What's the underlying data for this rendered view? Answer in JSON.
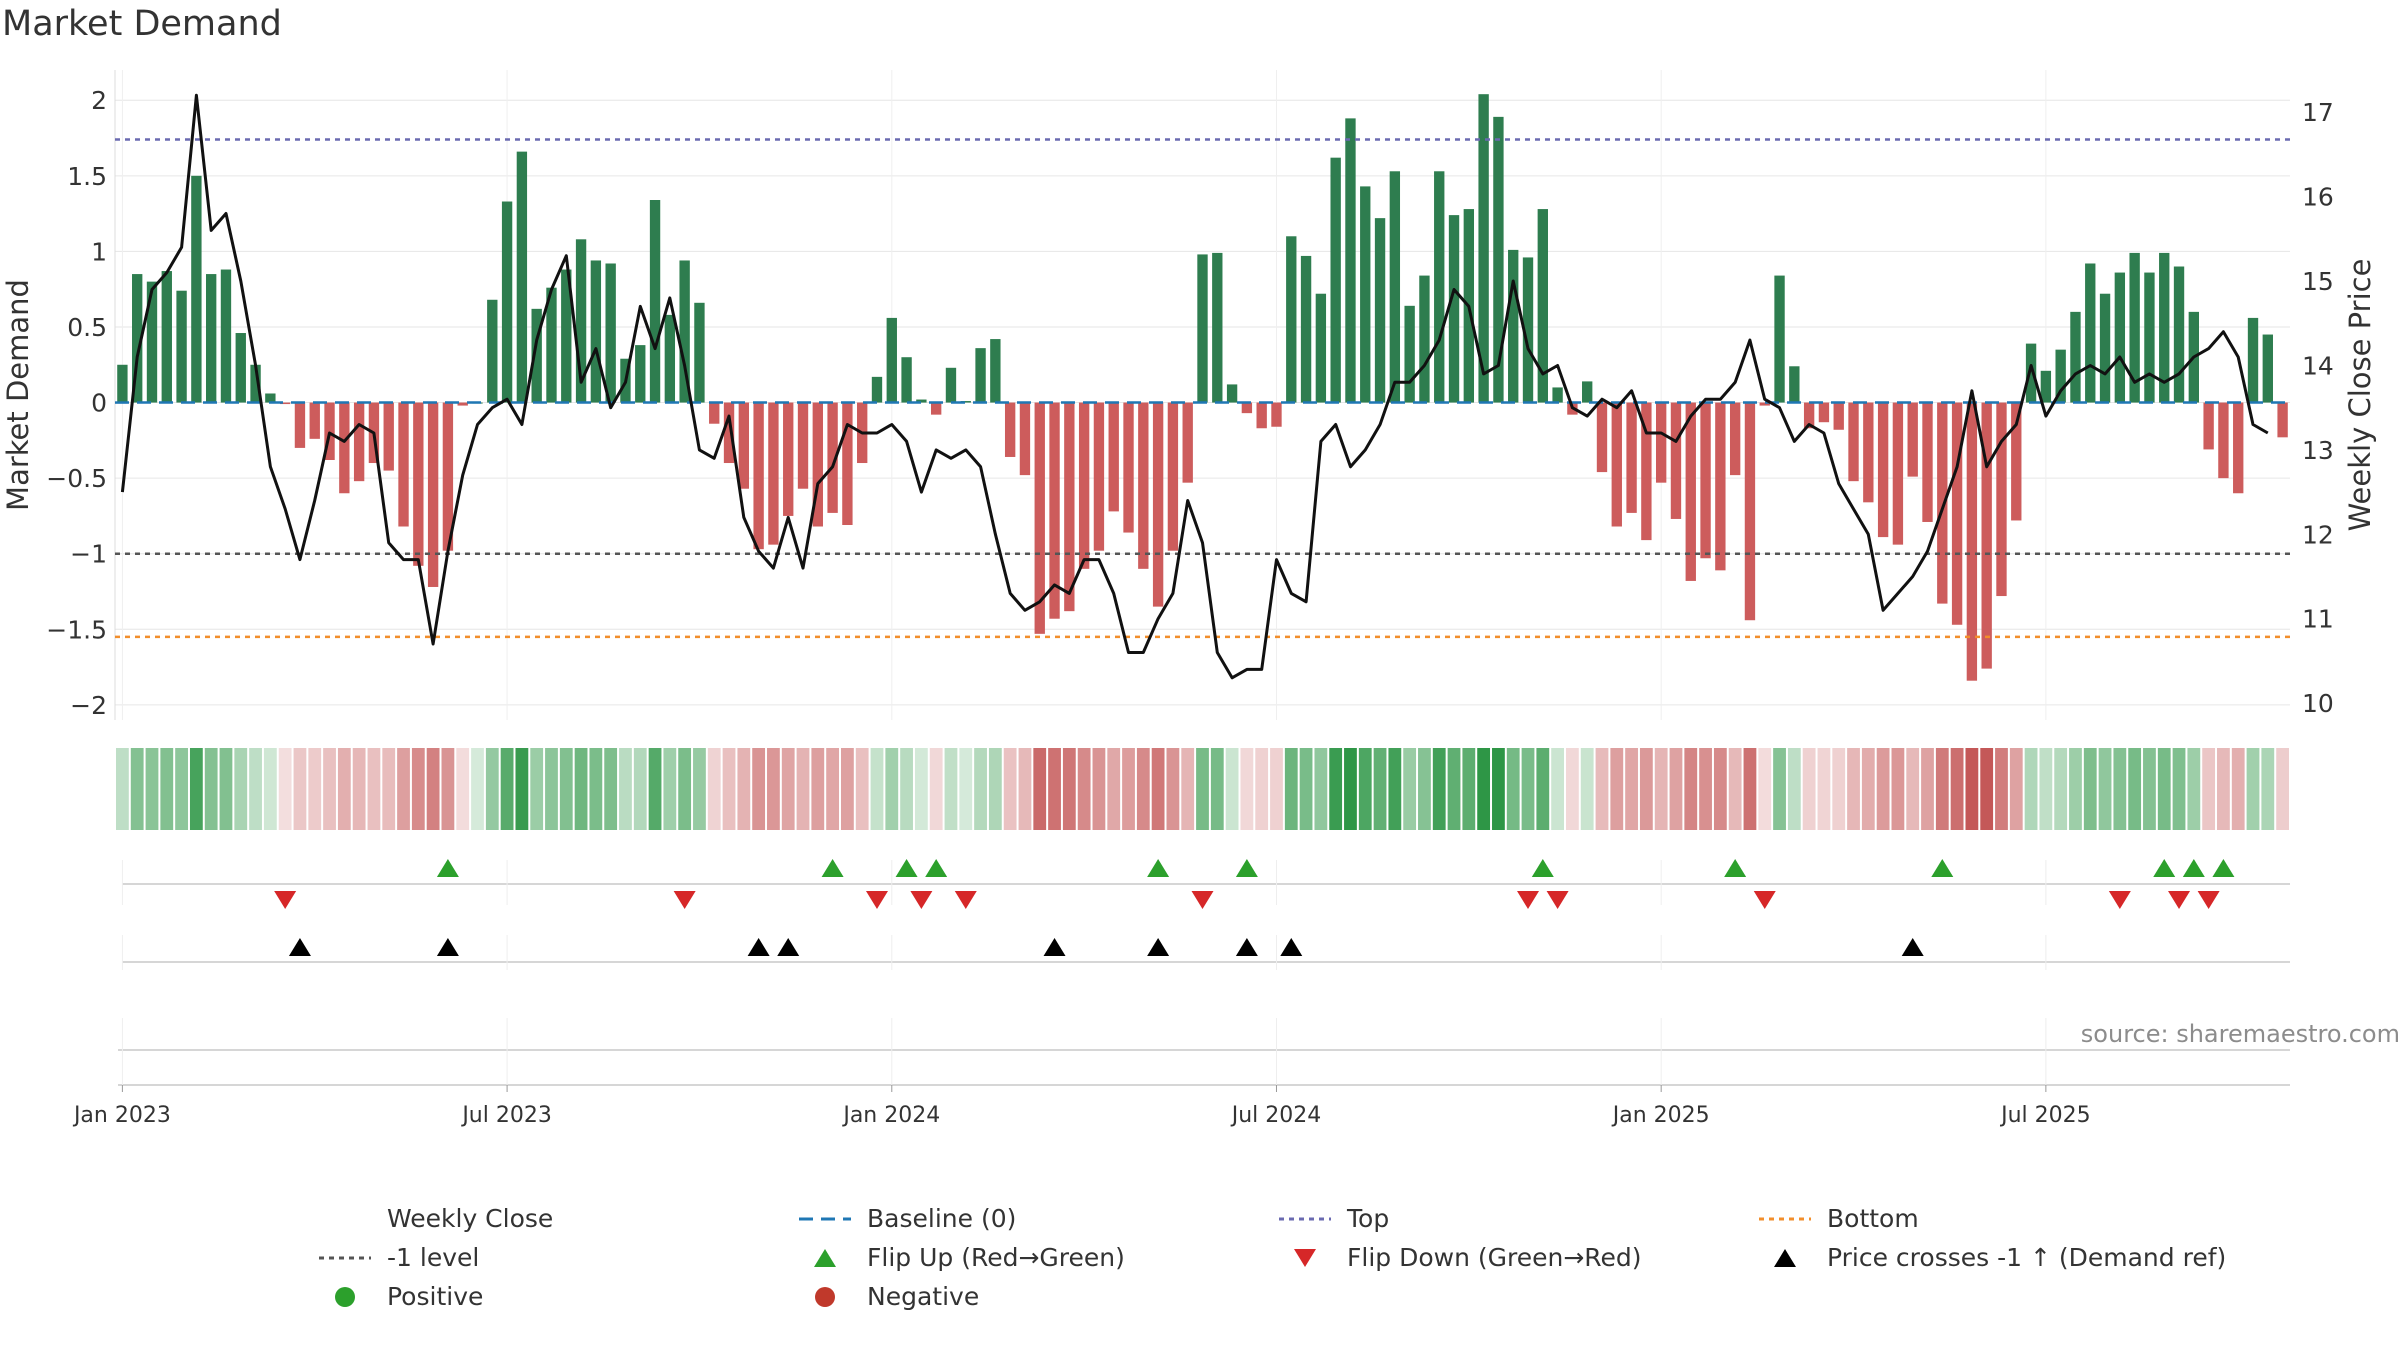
{
  "title": "Market Demand",
  "source": "source: sharemaestro.com",
  "colors": {
    "positive_bar": "#2e7d4f",
    "negative_bar": "#cd5c5c",
    "close_line": "#111111",
    "baseline": "#1f77b4",
    "top": "#6a6ab0",
    "bottom": "#f28e2b",
    "minus1": "#555555",
    "flip_up": "#2ca02c",
    "flip_down": "#d62728",
    "cross": "#000000",
    "positive_dot": "#2ca02c",
    "negative_dot": "#c0392b"
  },
  "legend": [
    {
      "key": "close",
      "label": "Weekly Close",
      "sym": "line"
    },
    {
      "key": "baseline",
      "label": "Baseline (0)",
      "sym": "dash"
    },
    {
      "key": "top",
      "label": "Top",
      "sym": "dot"
    },
    {
      "key": "bottom",
      "label": "Bottom",
      "sym": "dot"
    },
    {
      "key": "minus1",
      "label": "-1 level",
      "sym": "dot"
    },
    {
      "key": "flip_up",
      "label": "Flip Up (Red→Green)",
      "sym": "tri-up"
    },
    {
      "key": "flip_down",
      "label": "Flip Down (Green→Red)",
      "sym": "tri-down"
    },
    {
      "key": "cross",
      "label": "Price crosses -1 ↑ (Demand ref)",
      "sym": "tri-up"
    },
    {
      "key": "positive_dot",
      "label": "Positive",
      "sym": "circle"
    },
    {
      "key": "negative_dot",
      "label": "Negative",
      "sym": "circle"
    }
  ],
  "chart_data": {
    "type": "bar",
    "title": "Market Demand",
    "ylabel": "Market Demand",
    "y2label": "Weekly Close Price",
    "ylim": [
      -2.1,
      2.2
    ],
    "y2lim": [
      9.8,
      17.5
    ],
    "yticks": [
      2,
      1.5,
      1,
      0.5,
      0,
      -0.5,
      -1,
      -1.5,
      -2
    ],
    "ytick_labels": [
      "2",
      "1.5",
      "1",
      "0.5",
      "0",
      "−0.5",
      "−1",
      "−1.5",
      "−2"
    ],
    "y2ticks": [
      17,
      16,
      15,
      14,
      13,
      12,
      11,
      10
    ],
    "y2tick_labels": [
      "17",
      "16",
      "15",
      "14",
      "13",
      "12",
      "11",
      "10"
    ],
    "xtick_weeks": [
      0.5,
      26.5,
      52.5,
      78.5,
      104.5,
      130.5
    ],
    "xtick_labels": [
      "Jan 2023",
      "Jul 2023",
      "Jan 2024",
      "Jul 2024",
      "Jan 2025",
      "Jul 2025"
    ],
    "reference_lines": {
      "top": 1.74,
      "bottom": -1.55,
      "minus1": -1.0,
      "baseline": 0
    },
    "demand": [
      0.25,
      0.85,
      0.8,
      0.87,
      0.74,
      1.5,
      0.85,
      0.88,
      0.46,
      0.25,
      0.06,
      -0.01,
      -0.3,
      -0.24,
      -0.38,
      -0.6,
      -0.52,
      -0.4,
      -0.45,
      -0.82,
      -1.08,
      -1.22,
      -0.98,
      -0.02,
      0,
      0.68,
      1.33,
      1.66,
      0.62,
      0.76,
      0.88,
      1.08,
      0.94,
      0.92,
      0.29,
      0.38,
      1.34,
      0.58,
      0.94,
      0.66,
      -0.14,
      -0.4,
      -0.57,
      -0.97,
      -0.94,
      -0.75,
      -0.57,
      -0.82,
      -0.73,
      -0.81,
      -0.4,
      0.17,
      0.56,
      0.3,
      0.02,
      -0.08,
      0.23,
      0.01,
      0.36,
      0.42,
      -0.36,
      -0.48,
      -1.53,
      -1.43,
      -1.38,
      -1.1,
      -0.98,
      -0.72,
      -0.86,
      -1.1,
      -1.35,
      -0.98,
      -0.53,
      0.98,
      0.99,
      0.12,
      -0.07,
      -0.17,
      -0.16,
      1.1,
      0.97,
      0.72,
      1.62,
      1.88,
      1.43,
      1.22,
      1.53,
      0.64,
      0.84,
      1.53,
      1.24,
      1.28,
      2.04,
      1.89,
      1.01,
      0.96,
      1.28,
      0.1,
      -0.08,
      0.14,
      -0.46,
      -0.82,
      -0.73,
      -0.91,
      -0.53,
      -0.77,
      -1.18,
      -1.03,
      -1.11,
      -0.48,
      -1.44,
      -0.02,
      0.84,
      0.24,
      -0.17,
      -0.13,
      -0.18,
      -0.52,
      -0.66,
      -0.89,
      -0.94,
      -0.49,
      -0.79,
      -1.33,
      -1.47,
      -1.84,
      -1.76,
      -1.28,
      -0.78,
      0.39,
      0.21,
      0.35,
      0.6,
      0.92,
      0.72,
      0.86,
      0.99,
      0.86,
      0.99,
      0.9,
      0.6,
      -0.31,
      -0.5,
      -0.6,
      0.56,
      0.45,
      -0.23
    ],
    "close": [
      12.5,
      14.1,
      14.9,
      15.1,
      15.4,
      17.2,
      15.6,
      15.8,
      15.0,
      14.0,
      12.8,
      12.3,
      11.7,
      12.4,
      13.2,
      13.1,
      13.3,
      13.2,
      11.9,
      11.7,
      11.7,
      10.7,
      11.8,
      12.7,
      13.3,
      13.5,
      13.6,
      13.3,
      14.3,
      14.9,
      15.3,
      13.8,
      14.2,
      13.5,
      13.8,
      14.7,
      14.2,
      14.8,
      14.0,
      13.0,
      12.9,
      13.4,
      12.2,
      11.8,
      11.6,
      12.2,
      11.6,
      12.6,
      12.8,
      13.3,
      13.2,
      13.2,
      13.3,
      13.1,
      12.5,
      13.0,
      12.9,
      13.0,
      12.8,
      12.0,
      11.3,
      11.1,
      11.2,
      11.4,
      11.3,
      11.7,
      11.7,
      11.3,
      10.6,
      10.6,
      11.0,
      11.3,
      12.4,
      11.9,
      10.6,
      10.3,
      10.4,
      10.4,
      11.7,
      11.3,
      11.2,
      13.1,
      13.3,
      12.8,
      13.0,
      13.3,
      13.8,
      13.8,
      14.0,
      14.3,
      14.9,
      14.7,
      13.9,
      14.0,
      15.0,
      14.2,
      13.9,
      14.0,
      13.5,
      13.4,
      13.6,
      13.5,
      13.7,
      13.2,
      13.2,
      13.1,
      13.4,
      13.6,
      13.6,
      13.8,
      14.3,
      13.6,
      13.5,
      13.1,
      13.3,
      13.2,
      12.6,
      12.3,
      12.0,
      11.1,
      11.3,
      11.5,
      11.8,
      12.3,
      12.8,
      13.7,
      12.8,
      13.1,
      13.3,
      14.0,
      13.4,
      13.7,
      13.9,
      14.0,
      13.9,
      14.1,
      13.8,
      13.9,
      13.8,
      13.9,
      14.1,
      14.2,
      14.4,
      14.1,
      13.3,
      13.2
    ],
    "flip_up_weeks": [
      22,
      48,
      53,
      55,
      70,
      76,
      96,
      109,
      123,
      138,
      140,
      142
    ],
    "flip_down_weeks": [
      11,
      38,
      51,
      54,
      57,
      73,
      95,
      97,
      111,
      135,
      139,
      141
    ],
    "cross_weeks": [
      12,
      22,
      43,
      45,
      63,
      70,
      76,
      79,
      121
    ]
  }
}
